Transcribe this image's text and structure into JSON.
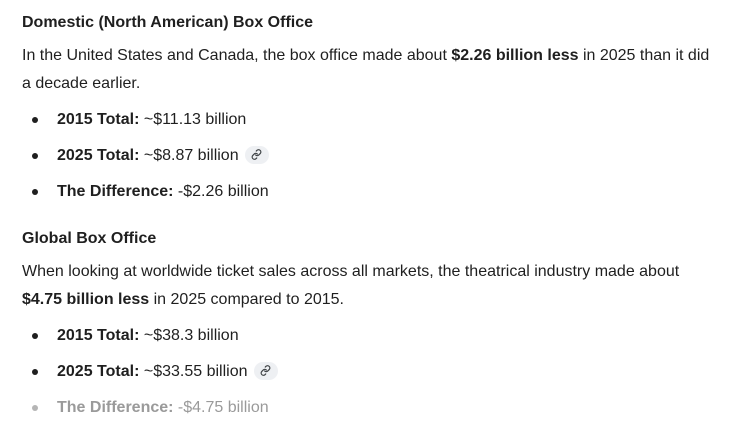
{
  "domestic": {
    "title": "Domestic (North American) Box Office",
    "intro_pre": "In the United States and Canada, the box office made about ",
    "intro_bold": "$2.26 billion less",
    "intro_post": " in 2025 than it did a decade earlier.",
    "items": [
      {
        "label": "2015 Total:",
        "value": " ~$11.13 billion"
      },
      {
        "label": "2025 Total:",
        "value": " ~$8.87 billion"
      },
      {
        "label": "The Difference:",
        "value": " -$2.26 billion"
      }
    ]
  },
  "global": {
    "title": "Global Box Office",
    "intro_pre": "When looking at worldwide ticket sales across all markets, the theatrical industry made about ",
    "intro_bold": "$4.75 billion less",
    "intro_post": " in 2025 compared to 2015.",
    "items": [
      {
        "label": "2015 Total:",
        "value": " ~$38.3 billion"
      },
      {
        "label": "2025 Total:",
        "value": " ~$33.55 billion"
      },
      {
        "label": "The Difference:",
        "value": " -$4.75 billion"
      }
    ]
  },
  "icons": {
    "source_link": "link-icon"
  },
  "colors": {
    "text": "#1f1f1f",
    "chip_bg": "#eef0f3",
    "faded_text": "#9a9a9a"
  }
}
